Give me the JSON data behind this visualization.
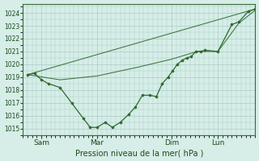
{
  "bg_color": "#d6ede8",
  "line_color": "#2d6a2d",
  "grid_color": "#a8ccc4",
  "title": "Pression niveau de la mer( hPa )",
  "ylim": [
    1014.5,
    1024.7
  ],
  "yticks": [
    1015,
    1016,
    1017,
    1018,
    1019,
    1020,
    1021,
    1022,
    1023,
    1024
  ],
  "xtick_labels": [
    "Sam",
    "Mar",
    "Dim",
    "Lun"
  ],
  "xtick_positions": [
    0.08,
    0.32,
    0.64,
    0.84
  ],
  "xlim": [
    0.0,
    1.0
  ],
  "series1_x": [
    0.02,
    0.05,
    0.08,
    0.11,
    0.16,
    0.21,
    0.26,
    0.29,
    0.32,
    0.355,
    0.385,
    0.42,
    0.455,
    0.485,
    0.515,
    0.545,
    0.575,
    0.6,
    0.625,
    0.645,
    0.665,
    0.685,
    0.705,
    0.725,
    0.745,
    0.765,
    0.785,
    0.84,
    0.9,
    0.93,
    0.97,
    1.0
  ],
  "series1_y": [
    1019.2,
    1019.3,
    1018.8,
    1018.5,
    1018.2,
    1017.0,
    1015.8,
    1015.1,
    1015.1,
    1015.5,
    1015.1,
    1015.5,
    1016.1,
    1016.7,
    1017.6,
    1017.6,
    1017.5,
    1018.5,
    1019.0,
    1019.5,
    1020.0,
    1020.3,
    1020.5,
    1020.6,
    1021.0,
    1021.0,
    1021.1,
    1021.0,
    1023.1,
    1023.3,
    1024.1,
    1024.3
  ],
  "series2_x": [
    0.02,
    0.16,
    0.32,
    0.5,
    0.64,
    0.75,
    0.84,
    0.93,
    1.0
  ],
  "series2_y": [
    1019.2,
    1018.8,
    1019.1,
    1019.8,
    1020.4,
    1021.0,
    1021.0,
    1023.2,
    1024.2
  ],
  "series3_x": [
    0.02,
    1.0
  ],
  "series3_y": [
    1019.2,
    1024.3
  ],
  "marker_size": 2.5,
  "linewidth": 0.9
}
